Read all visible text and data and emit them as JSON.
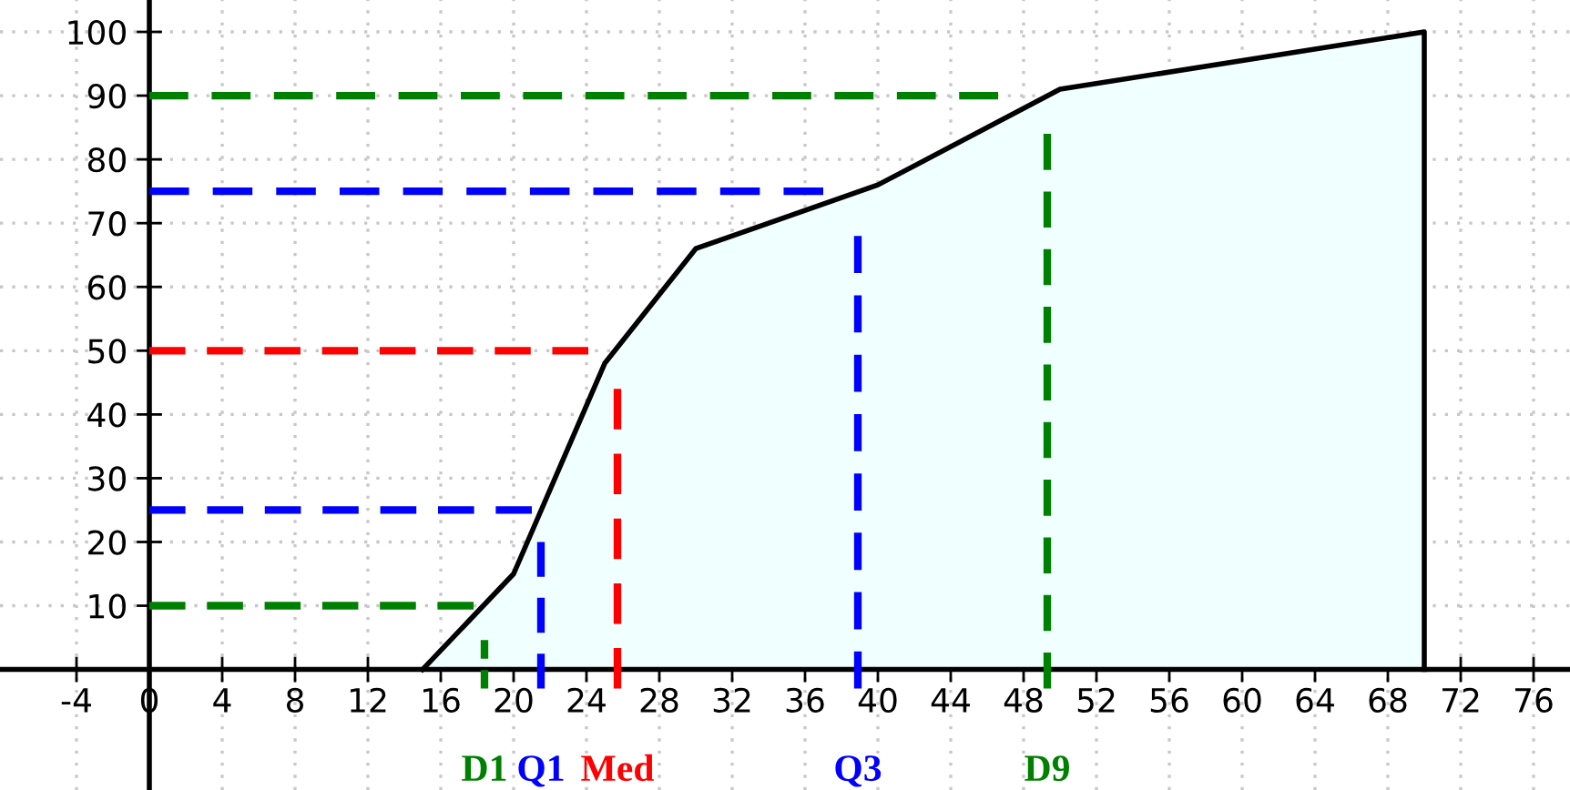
{
  "chart_data": {
    "type": "area",
    "xlim": [
      -8.2,
      78
    ],
    "ylim": [
      -18.9,
      105
    ],
    "xticks": [
      -4,
      0,
      4,
      8,
      12,
      16,
      20,
      24,
      28,
      32,
      36,
      40,
      44,
      48,
      52,
      56,
      60,
      64,
      68,
      72,
      76
    ],
    "yticks": [
      10,
      20,
      30,
      40,
      50,
      60,
      70,
      80,
      90,
      100
    ],
    "grid": true,
    "legend": false,
    "series": [
      {
        "color": "#f0ffff",
        "x": [
          15,
          20,
          25,
          30,
          40,
          50,
          70,
          70
        ],
        "values": [
          0,
          15,
          48,
          66,
          76,
          91,
          100,
          0
        ]
      },
      {
        "type": "line",
        "line_style": "dashed",
        "color": "#008000",
        "x": [
          0,
          17.8
        ],
        "values": [
          10,
          10
        ]
      },
      {
        "type": "line",
        "line_style": "dashed",
        "color": "#0000ff",
        "x": [
          0,
          21
        ],
        "values": [
          25,
          25
        ]
      },
      {
        "type": "line",
        "line_style": "dashed",
        "color": "#ff0000",
        "x": [
          0,
          24.1
        ],
        "values": [
          50,
          50
        ]
      },
      {
        "type": "line",
        "line_style": "dashed",
        "color": "#0000ff",
        "x": [
          0,
          37
        ],
        "values": [
          75,
          75
        ]
      },
      {
        "type": "line",
        "line_style": "dashed",
        "color": "#008000",
        "x": [
          0,
          46.6
        ],
        "values": [
          90,
          90
        ]
      },
      {
        "type": "line",
        "line_style": "dashed",
        "color": "#008000",
        "x": [
          18.4,
          18.4
        ],
        "values": [
          -3,
          4.6
        ]
      },
      {
        "type": "line",
        "line_style": "dashed",
        "color": "#0000ff",
        "x": [
          21.5,
          21.5
        ],
        "values": [
          -3,
          20
        ]
      },
      {
        "type": "line",
        "line_style": "dashed",
        "color": "#ff0000",
        "x": [
          25.7,
          25.7
        ],
        "values": [
          -3,
          44
        ]
      },
      {
        "type": "line",
        "line_style": "dashed",
        "color": "#0000ff",
        "x": [
          38.9,
          38.9
        ],
        "values": [
          -3,
          68
        ]
      },
      {
        "type": "line",
        "line_style": "dashed",
        "color": "#008000",
        "x": [
          49.3,
          49.3
        ],
        "values": [
          -3,
          84
        ]
      }
    ],
    "annotations": [
      {
        "text": "D1",
        "x": 18.4,
        "y": -3
      },
      {
        "text": "Q1",
        "x": 21.5,
        "y": -3
      },
      {
        "text": "Med",
        "x": 25.7,
        "y": -3
      },
      {
        "text": "Q3",
        "x": 38.9,
        "y": -3
      },
      {
        "text": "D9",
        "x": 49.3,
        "y": -3
      }
    ]
  }
}
